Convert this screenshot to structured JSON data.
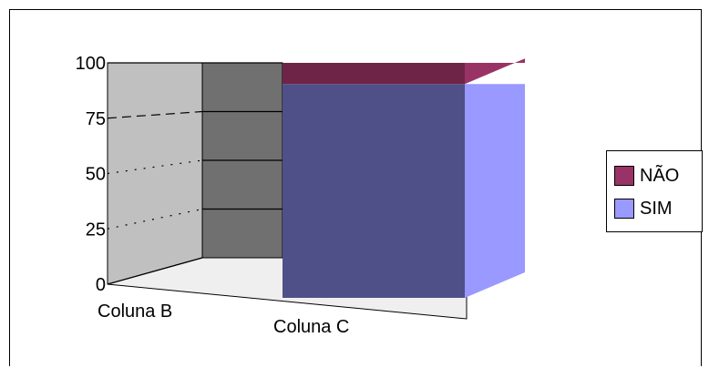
{
  "chart_data": {
    "type": "bar",
    "subtype": "3d-stacked-percent",
    "categories": [
      "Coluna B",
      "Coluna C"
    ],
    "series": [
      {
        "name": "SIM",
        "values": [
          0,
          91
        ],
        "color": "#9999ff",
        "face_color": "#505088"
      },
      {
        "name": "NÃO",
        "values": [
          0,
          9
        ],
        "color": "#993366",
        "face_color": "#6e2446"
      }
    ],
    "ylim": [
      0,
      100
    ],
    "yticks": [
      0,
      25,
      50,
      75,
      100
    ],
    "ytick_labels": [
      "0",
      "25",
      "50",
      "75",
      "100"
    ],
    "legend_position": "right",
    "grid": true,
    "wall_colors": {
      "side": "#c0c0c0",
      "back": "#707070",
      "floor": "#efefef"
    }
  }
}
